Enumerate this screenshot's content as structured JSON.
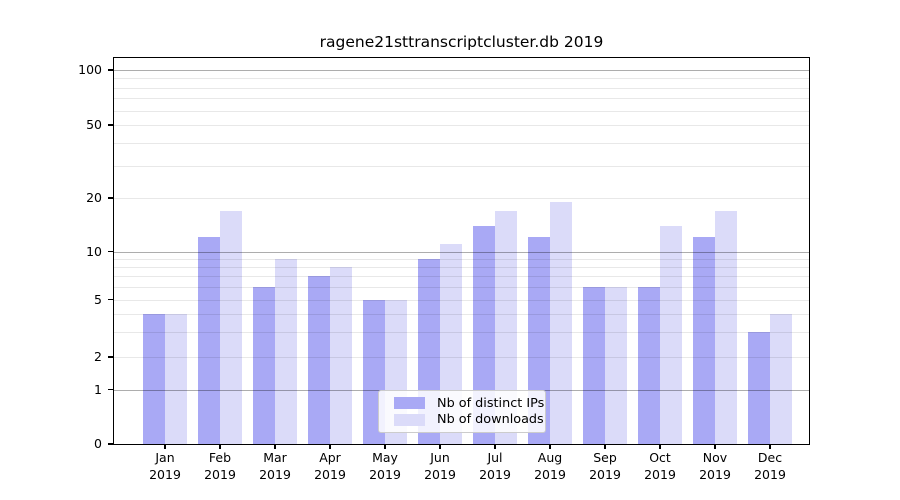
{
  "chart_data": {
    "type": "bar",
    "title": "ragene21sttranscriptcluster.db 2019",
    "categories": [
      "Jan 2019",
      "Feb 2019",
      "Mar 2019",
      "Apr 2019",
      "May 2019",
      "Jun 2019",
      "Jul 2019",
      "Aug 2019",
      "Sep 2019",
      "Oct 2019",
      "Nov 2019",
      "Dec 2019"
    ],
    "series": [
      {
        "name": "Nb of distinct IPs",
        "color": "#a9a9f5",
        "values": [
          4,
          12,
          6,
          7,
          5,
          9,
          14,
          12,
          6,
          6,
          12,
          3
        ]
      },
      {
        "name": "Nb of downloads",
        "color": "#dbdbf9",
        "values": [
          4,
          17,
          9,
          8,
          5,
          11,
          17,
          19,
          6,
          14,
          17,
          4
        ]
      }
    ],
    "xlabel": "",
    "ylabel": "",
    "y_axis": {
      "scale": "log-like",
      "tick_values": [
        0,
        1,
        2,
        5,
        10,
        20,
        50,
        100
      ],
      "tick_labels": [
        "0",
        "1",
        "2",
        "5",
        "10",
        "20",
        "50",
        "100"
      ]
    },
    "grid": {
      "major_values": [
        1,
        10,
        100
      ],
      "minor_values": [
        2,
        3,
        4,
        5,
        6,
        7,
        8,
        9,
        20,
        30,
        40,
        50,
        60,
        70,
        80,
        90
      ]
    },
    "legend_position": "inside bottom-center"
  },
  "colors": {
    "bar_distinct_ips": "#a9a9f5",
    "bar_downloads": "#dbdbf9",
    "grid_major": "rgba(0,0,0,0.32)",
    "grid_minor": "rgba(0,0,0,0.09)",
    "axis": "#000000",
    "legend_border": "#cccccc",
    "background": "#ffffff"
  }
}
